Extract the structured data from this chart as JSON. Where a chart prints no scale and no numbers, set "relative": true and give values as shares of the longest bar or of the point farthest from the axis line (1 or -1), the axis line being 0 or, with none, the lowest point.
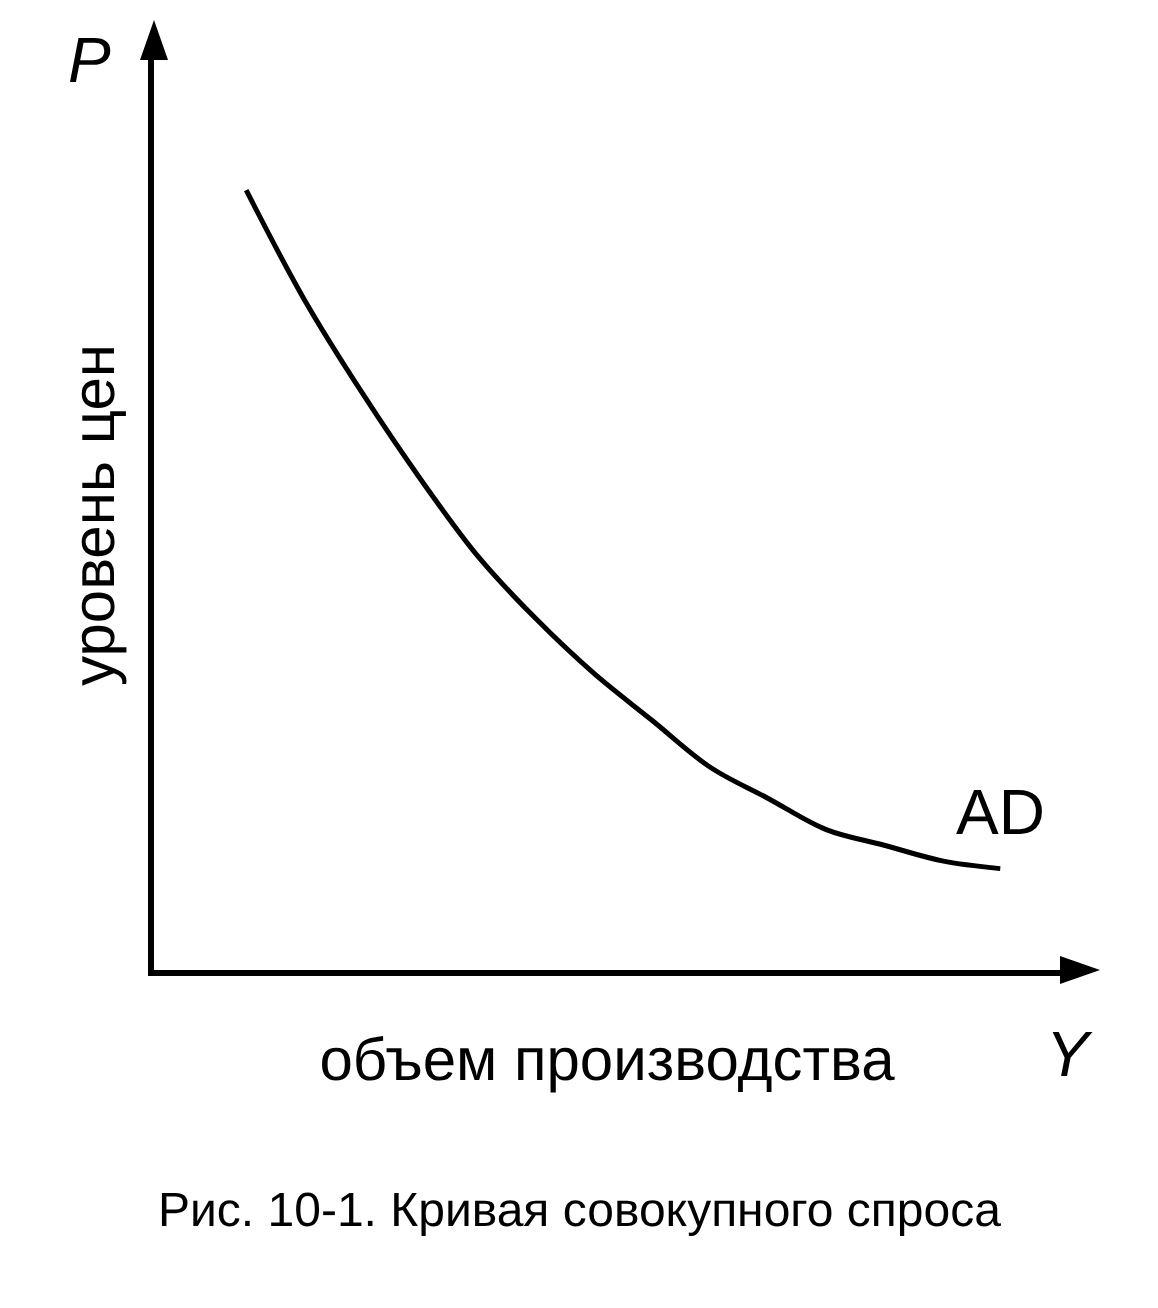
{
  "chart_data": {
    "type": "line",
    "relative": true,
    "legend": false,
    "marker": "none",
    "line_style": "solid",
    "xlabel": "объем производства",
    "ylabel": "уровень цен",
    "categories": [
      null,
      null,
      null,
      null,
      null,
      null,
      null,
      null,
      null,
      null,
      null,
      null,
      null,
      null
    ],
    "series": [
      {
        "name": "AD",
        "color": "#000000",
        "values": [
          1,
          0.86,
          0.74,
          0.63,
          0.53,
          0.45,
          0.38,
          0.32,
          0.26,
          0.22,
          0.18,
          0.16,
          0.14,
          0.13
        ]
      }
    ],
    "annotations": [
      "P",
      "Y",
      "Рис. 10-1. Кривая совокупного спроса"
    ]
  }
}
